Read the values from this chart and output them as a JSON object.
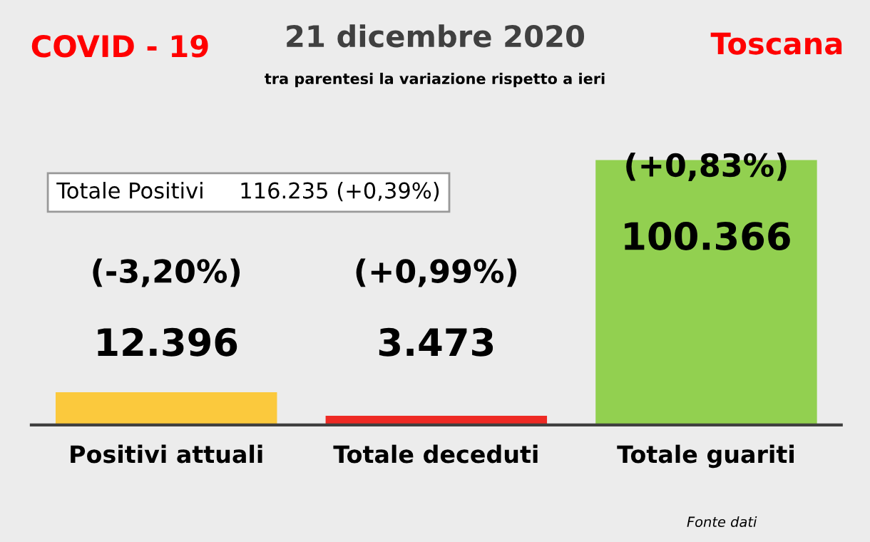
{
  "chart_data": {
    "type": "bar",
    "title": "21 dicembre 2020",
    "subtitle": "tra parentesi la variazione rispetto a ieri",
    "categories": [
      "Positivi attuali",
      "Totale deceduti",
      "Totale guariti"
    ],
    "values": [
      12396,
      3473,
      100366
    ],
    "colors": [
      "#fbc93d",
      "#ee2a24",
      "#92d050"
    ],
    "value_labels": [
      "12.396",
      "3.473",
      "100.366"
    ],
    "annotations": [
      "COVID - 19",
      "Toscana",
      "Totale Positivi     116.235 (+0,39%)",
      "(-3,20%)",
      "(+0,99%)",
      "(+0,83%)",
      "Fonte dati"
    ]
  }
}
